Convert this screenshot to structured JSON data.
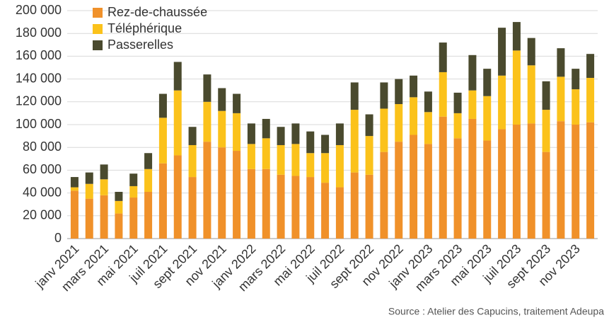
{
  "chart_data": {
    "type": "stacked_bar",
    "categories": [
      "janv 2021",
      null,
      "mars 2021",
      null,
      "mai 2021",
      null,
      "juil 2021",
      null,
      "sept 2021",
      null,
      "nov 2021",
      null,
      "janv 2022",
      null,
      "mars 2022",
      null,
      "mai 2022",
      null,
      "juil 2022",
      null,
      "sept 2022",
      null,
      "nov 2022",
      null,
      "janv 2023",
      null,
      "mars 2023",
      null,
      "mai 2023",
      null,
      "juil 2023",
      null,
      "sept 2023",
      null,
      "nov 2023",
      null
    ],
    "series": [
      {
        "name": "Rez-de-chaussée",
        "color": "#f0912a",
        "values": [
          42000,
          35000,
          38000,
          22000,
          36000,
          41000,
          66000,
          73000,
          54000,
          85000,
          80000,
          77000,
          61000,
          61000,
          56000,
          55000,
          54000,
          49000,
          45000,
          58000,
          56000,
          76000,
          85000,
          91000,
          83000,
          107000,
          88000,
          105000,
          86000,
          96000,
          100000,
          101000,
          76000,
          103000,
          100000,
          102000
        ]
      },
      {
        "name": "Téléphérique",
        "color": "#fbc21b",
        "values": [
          3000,
          13000,
          14000,
          11000,
          10000,
          20000,
          40000,
          57000,
          28000,
          35000,
          32000,
          33000,
          22000,
          27000,
          26000,
          28000,
          21000,
          26000,
          37000,
          55000,
          34000,
          38000,
          33000,
          33000,
          28000,
          39000,
          22000,
          25000,
          39000,
          47000,
          65000,
          51000,
          37000,
          39000,
          31000,
          39000
        ]
      },
      {
        "name": "Passerelles",
        "color": "#4a4a2e",
        "values": [
          9000,
          10000,
          13000,
          8000,
          11000,
          14000,
          21000,
          25000,
          16000,
          24000,
          20000,
          17000,
          18000,
          17000,
          16000,
          18000,
          19000,
          16000,
          19000,
          24000,
          19000,
          23000,
          22000,
          19000,
          18000,
          26000,
          18000,
          31000,
          24000,
          42000,
          25000,
          24000,
          25000,
          25000,
          18000,
          21000
        ]
      }
    ],
    "ylim": [
      0,
      200000
    ],
    "yticks": [
      0,
      {
        "value": 20000,
        "label": "20 000"
      },
      {
        "value": 40000,
        "label": "40 000"
      },
      {
        "value": 60000,
        "label": "60 000"
      },
      {
        "value": 80000,
        "label": "80 000"
      },
      {
        "value": 100000,
        "label": "100 000"
      },
      {
        "value": 120000,
        "label": "120 000"
      },
      {
        "value": 140000,
        "label": "140 000"
      },
      {
        "value": 160000,
        "label": "160 000"
      },
      {
        "value": 180000,
        "label": "180 000"
      },
      {
        "value": 200000,
        "label": "200 000"
      }
    ],
    "grid": true,
    "legend": "top-left",
    "source": "Source : Atelier des Capucins, traitement Adeupa"
  }
}
